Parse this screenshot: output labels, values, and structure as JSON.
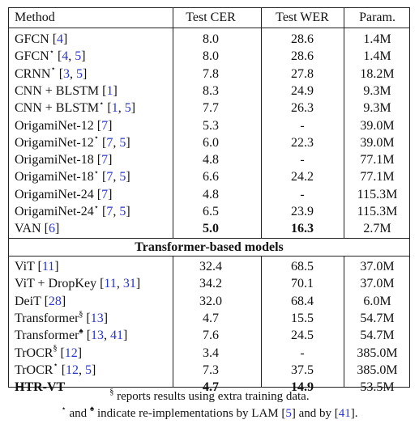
{
  "table": {
    "headers": [
      "Method",
      "Test CER",
      "Test WER",
      "Param."
    ],
    "cnn_rows": [
      {
        "name": "GFCN",
        "mark": "",
        "refs": [
          "4"
        ],
        "cer": "8.0",
        "wer": "28.6",
        "param": "1.4M"
      },
      {
        "name": "GFCN",
        "mark": "⋆",
        "refs": [
          "4",
          "5"
        ],
        "cer": "8.0",
        "wer": "28.6",
        "param": "1.4M"
      },
      {
        "name": "CRNN",
        "mark": "⋆",
        "refs": [
          "3",
          "5"
        ],
        "cer": "7.8",
        "wer": "27.8",
        "param": "18.2M"
      },
      {
        "name": "CNN + BLSTM",
        "mark": "",
        "refs": [
          "1"
        ],
        "cer": "8.3",
        "wer": "24.9",
        "param": "9.3M"
      },
      {
        "name": "CNN + BLSTM",
        "mark": "⋆",
        "refs": [
          "1",
          "5"
        ],
        "cer": "7.7",
        "wer": "26.3",
        "param": "9.3M"
      },
      {
        "name": "OrigamiNet-12",
        "mark": "",
        "refs": [
          "7"
        ],
        "cer": "5.3",
        "wer": "-",
        "param": "39.0M"
      },
      {
        "name": "OrigamiNet-12",
        "mark": "⋆",
        "refs": [
          "7",
          "5"
        ],
        "cer": "6.0",
        "wer": "22.3",
        "param": "39.0M"
      },
      {
        "name": "OrigamiNet-18",
        "mark": "",
        "refs": [
          "7"
        ],
        "cer": "4.8",
        "wer": "-",
        "param": "77.1M"
      },
      {
        "name": "OrigamiNet-18",
        "mark": "⋆",
        "refs": [
          "7",
          "5"
        ],
        "cer": "6.6",
        "wer": "24.2",
        "param": "77.1M"
      },
      {
        "name": "OrigamiNet-24",
        "mark": "",
        "refs": [
          "7"
        ],
        "cer": "4.8",
        "wer": "-",
        "param": "115.3M"
      },
      {
        "name": "OrigamiNet-24",
        "mark": "⋆",
        "refs": [
          "7",
          "5"
        ],
        "cer": "6.5",
        "wer": "23.9",
        "param": "115.3M"
      },
      {
        "name": "VAN",
        "mark": "",
        "refs": [
          "6"
        ],
        "cer": "5.0",
        "wer": "16.3",
        "param": "2.7M",
        "bold_scores": true
      }
    ],
    "section_title": "Transformer-based models",
    "transformer_rows": [
      {
        "name": "ViT",
        "mark": "",
        "refs": [
          "11"
        ],
        "cer": "32.4",
        "wer": "68.5",
        "param": "37.0M"
      },
      {
        "name": "ViT + DropKey",
        "mark": "",
        "refs": [
          "11",
          "31"
        ],
        "cer": "34.2",
        "wer": "70.1",
        "param": "37.0M"
      },
      {
        "name": "DeiT",
        "mark": "",
        "refs": [
          "28"
        ],
        "cer": "32.0",
        "wer": "68.4",
        "param": "6.0M"
      },
      {
        "name": "Transformer",
        "mark": "§",
        "refs": [
          "13"
        ],
        "cer": "4.7",
        "wer": "15.5",
        "param": "54.7M"
      },
      {
        "name": "Transformer",
        "mark": "♠",
        "refs": [
          "13",
          "41"
        ],
        "cer": "7.6",
        "wer": "24.5",
        "param": "54.7M"
      },
      {
        "name": "TrOCR",
        "mark": "§",
        "refs": [
          "12"
        ],
        "cer": "3.4",
        "wer": "-",
        "param": "385.0M"
      },
      {
        "name": "TrOCR",
        "mark": "⋆",
        "refs": [
          "12",
          "5"
        ],
        "cer": "7.3",
        "wer": "37.5",
        "param": "385.0M"
      },
      {
        "name": "HTR-VT",
        "mark": "",
        "refs": [],
        "cer": "4.7",
        "wer": "14.9",
        "param": "53.5M",
        "bold_all": true
      }
    ]
  },
  "footnotes": {
    "line1": {
      "mark": "§",
      "text": " reports results using extra training data."
    },
    "line2": {
      "mark_a": "⋆",
      "text_a": " and ",
      "mark_b": "♠",
      "text_b": " indicate re-implementations by LAM [",
      "ref_a": "5",
      "text_c": "] and by [",
      "ref_b": "41",
      "text_d": "]."
    }
  }
}
